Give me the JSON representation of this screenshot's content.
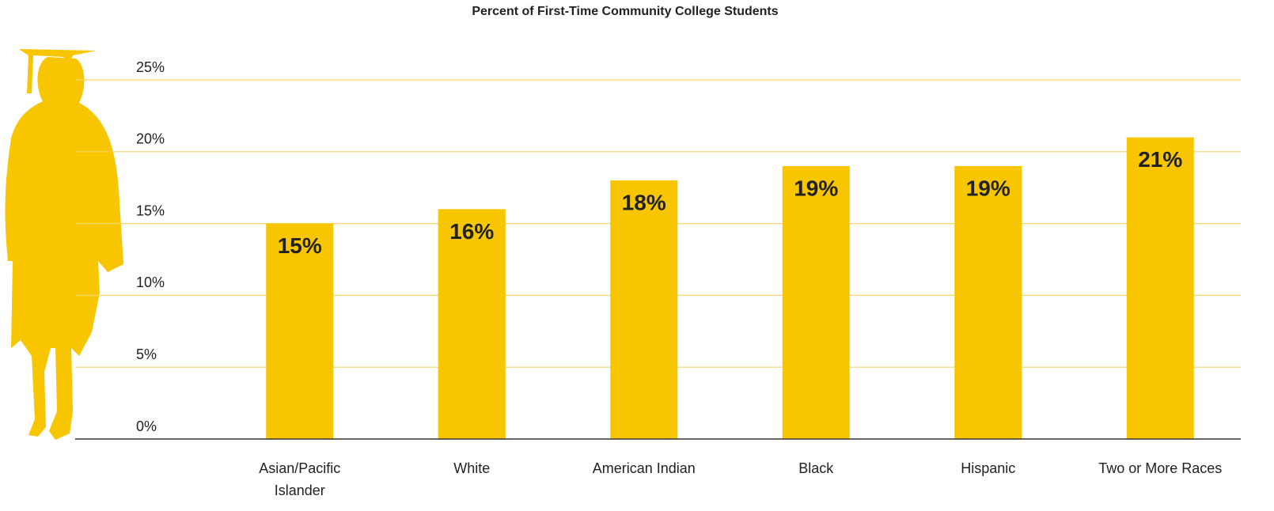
{
  "chart_data": {
    "type": "bar",
    "title": "Percent of First-Time Community College Students",
    "categories": [
      "Asian/Pacific Islander",
      "White",
      "American Indian",
      "Black",
      "Hispanic",
      "Two or More Races"
    ],
    "values": [
      15,
      16,
      18,
      19,
      19,
      21
    ],
    "value_labels": [
      "15%",
      "16%",
      "18%",
      "19%",
      "19%",
      "21%"
    ],
    "color": "#f7c600",
    "ylim": [
      0,
      25
    ],
    "yticks": [
      {
        "value": 0,
        "label": "0%"
      },
      {
        "value": 5,
        "label": "5%"
      },
      {
        "value": 10,
        "label": "10%"
      },
      {
        "value": 15,
        "label": "15%"
      },
      {
        "value": 20,
        "label": "20%"
      },
      {
        "value": 25,
        "label": "25%"
      }
    ],
    "grid": true
  }
}
